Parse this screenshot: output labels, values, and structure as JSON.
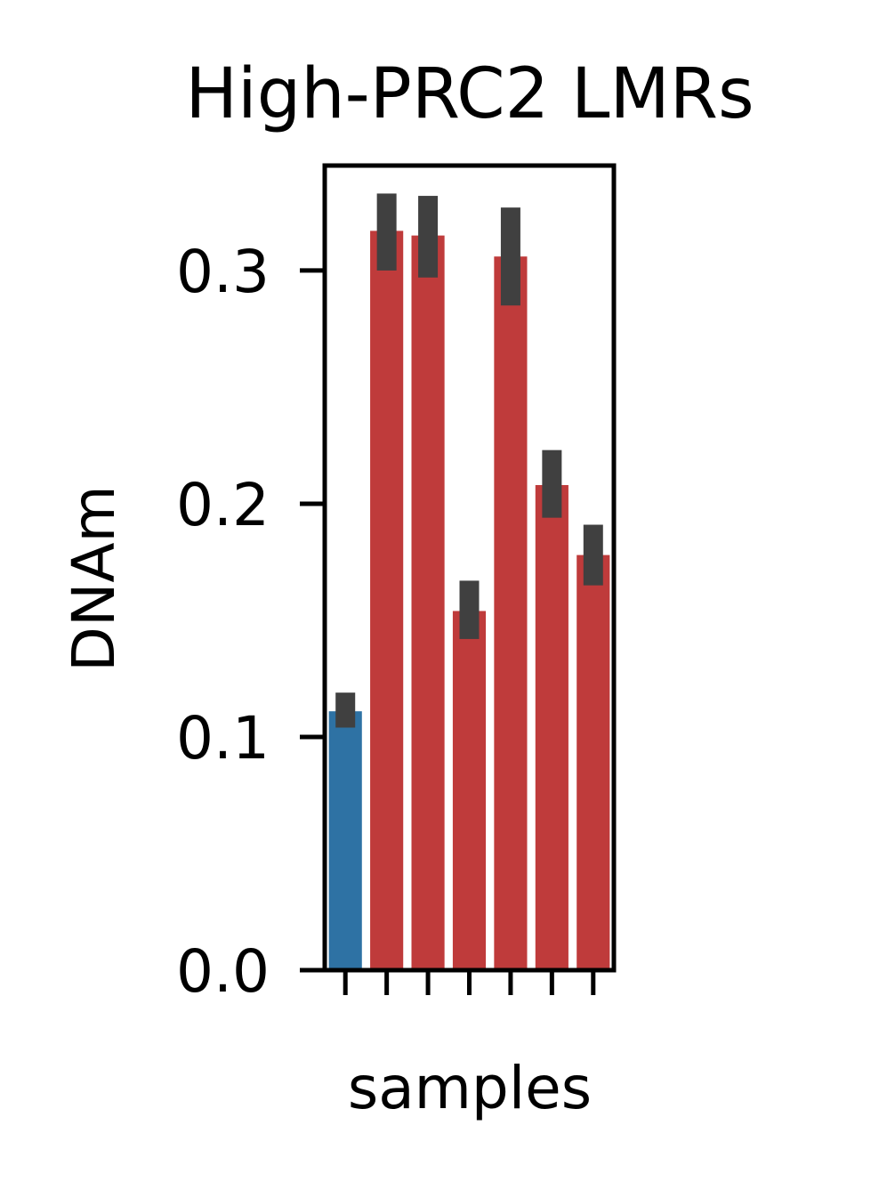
{
  "chart_data": {
    "type": "bar",
    "title": "High-PRC2 LMRs",
    "xlabel": "samples",
    "ylabel": "DNAm",
    "ylim": [
      0,
      0.345
    ],
    "yticks": [
      0.0,
      0.1,
      0.2,
      0.3
    ],
    "ytick_labels": [
      "0.0",
      "0.1",
      "0.2",
      "0.3"
    ],
    "x_tick_labels_shown": false,
    "grid": false,
    "legend": "none",
    "bars": [
      {
        "value": 0.111,
        "err_low": 0.104,
        "err_high": 0.119,
        "color": "#2e72a4"
      },
      {
        "value": 0.317,
        "err_low": 0.3,
        "err_high": 0.333,
        "color": "#bf3b3b"
      },
      {
        "value": 0.315,
        "err_low": 0.297,
        "err_high": 0.332,
        "color": "#bf3b3b"
      },
      {
        "value": 0.154,
        "err_low": 0.142,
        "err_high": 0.167,
        "color": "#bf3b3b"
      },
      {
        "value": 0.306,
        "err_low": 0.285,
        "err_high": 0.327,
        "color": "#bf3b3b"
      },
      {
        "value": 0.208,
        "err_low": 0.194,
        "err_high": 0.223,
        "color": "#bf3b3b"
      },
      {
        "value": 0.178,
        "err_low": 0.165,
        "err_high": 0.191,
        "color": "#bf3b3b"
      }
    ],
    "errorbar_color": "#404040"
  }
}
